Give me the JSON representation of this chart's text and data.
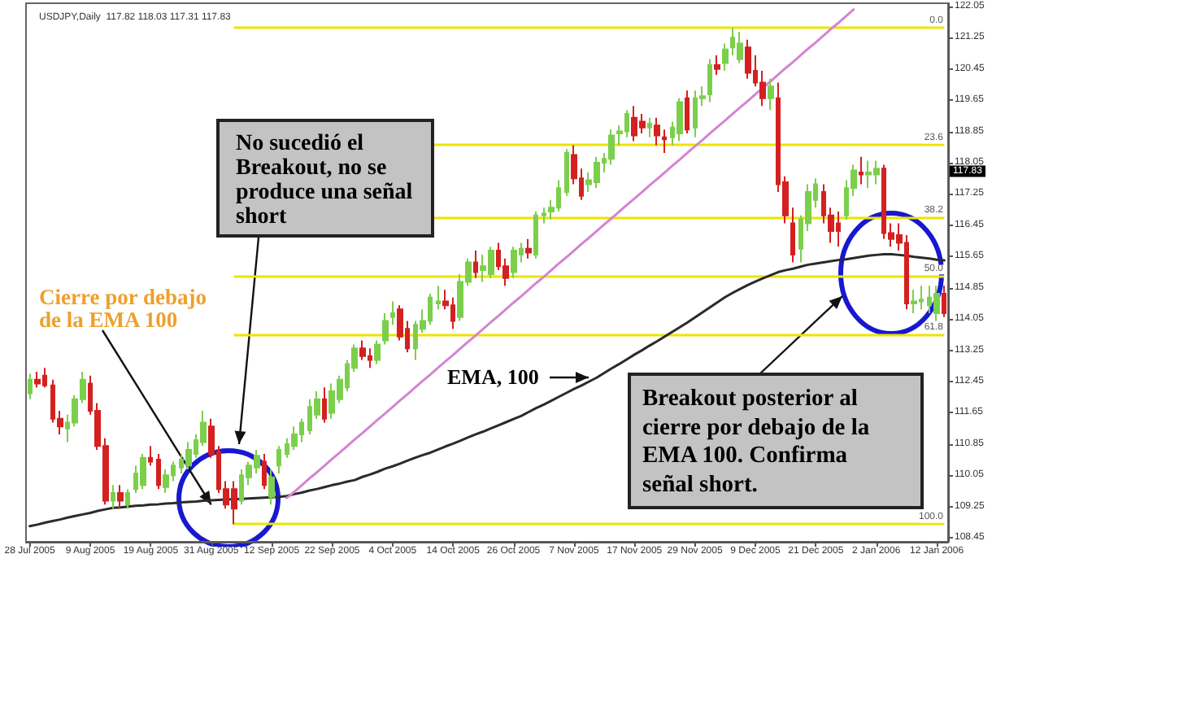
{
  "chart_data": {
    "type": "candlestick",
    "title": "USDJPY,Daily  117.82 118.03 117.31 117.83",
    "categories": [
      "28 Jul 2005",
      null,
      null,
      null,
      null,
      null,
      null,
      null,
      "9 Aug 2005",
      null,
      null,
      null,
      null,
      null,
      null,
      null,
      "19 Aug 2005",
      null,
      null,
      null,
      null,
      null,
      null,
      null,
      "31 Aug 2005",
      null,
      null,
      null,
      null,
      null,
      null,
      null,
      "12 Sep 2005",
      null,
      null,
      null,
      null,
      null,
      null,
      null,
      "22 Sep 2005",
      null,
      null,
      null,
      null,
      null,
      null,
      null,
      "4 Oct 2005",
      null,
      null,
      null,
      null,
      null,
      null,
      null,
      "14 Oct 2005",
      null,
      null,
      null,
      null,
      null,
      null,
      null,
      "26 Oct 2005",
      null,
      null,
      null,
      null,
      null,
      null,
      null,
      "7 Nov 2005",
      null,
      null,
      null,
      null,
      null,
      null,
      null,
      "17 Nov 2005",
      null,
      null,
      null,
      null,
      null,
      null,
      null,
      "29 Nov 2005",
      null,
      null,
      null,
      null,
      null,
      null,
      null,
      "9 Dec 2005",
      null,
      null,
      null,
      null,
      null,
      null,
      null,
      "21 Dec 2005",
      null,
      null,
      null,
      null,
      null,
      null,
      null,
      "2 Jan 2006",
      null,
      null,
      null,
      null,
      null,
      null,
      null,
      "12 Jan 2006",
      null
    ],
    "ohlc": [
      [
        112.15,
        112.65,
        112.0,
        112.5
      ],
      [
        112.5,
        112.7,
        112.3,
        112.4
      ],
      [
        112.6,
        112.8,
        112.3,
        112.35
      ],
      [
        112.35,
        112.5,
        111.4,
        111.5
      ],
      [
        111.5,
        111.7,
        111.1,
        111.3
      ],
      [
        111.25,
        111.6,
        110.9,
        111.4
      ],
      [
        111.4,
        112.1,
        111.3,
        112.0
      ],
      [
        112.0,
        112.7,
        111.9,
        112.5
      ],
      [
        112.4,
        112.6,
        111.6,
        111.7
      ],
      [
        111.7,
        111.9,
        110.7,
        110.8
      ],
      [
        110.8,
        111.0,
        109.3,
        109.4
      ],
      [
        109.4,
        109.8,
        109.2,
        109.6
      ],
      [
        109.6,
        109.8,
        109.2,
        109.4
      ],
      [
        109.3,
        109.7,
        109.2,
        109.6
      ],
      [
        109.7,
        110.3,
        109.6,
        110.1
      ],
      [
        109.8,
        110.6,
        109.7,
        110.5
      ],
      [
        110.5,
        110.8,
        110.3,
        110.4
      ],
      [
        110.45,
        110.6,
        109.7,
        109.8
      ],
      [
        109.75,
        110.2,
        109.6,
        110.05
      ],
      [
        110.05,
        110.4,
        109.9,
        110.3
      ],
      [
        110.25,
        110.6,
        110.1,
        110.45
      ],
      [
        110.3,
        110.9,
        110.2,
        110.7
      ],
      [
        110.6,
        111.1,
        110.5,
        110.95
      ],
      [
        110.9,
        111.7,
        110.8,
        111.4
      ],
      [
        111.3,
        111.5,
        110.5,
        110.6
      ],
      [
        110.65,
        110.8,
        109.6,
        109.7
      ],
      [
        109.7,
        109.9,
        109.2,
        109.3
      ],
      [
        109.7,
        109.9,
        108.8,
        109.2
      ],
      [
        109.4,
        110.2,
        109.3,
        110.05
      ],
      [
        110.0,
        110.4,
        109.8,
        110.3
      ],
      [
        110.25,
        110.7,
        110.1,
        110.55
      ],
      [
        110.4,
        110.6,
        109.7,
        109.8
      ],
      [
        109.5,
        110.2,
        109.3,
        110.0
      ],
      [
        110.3,
        110.8,
        110.1,
        110.7
      ],
      [
        110.6,
        111.0,
        110.5,
        110.85
      ],
      [
        110.8,
        111.3,
        110.7,
        111.1
      ],
      [
        111.1,
        111.5,
        110.9,
        111.4
      ],
      [
        111.2,
        112.0,
        111.1,
        111.8
      ],
      [
        111.6,
        112.2,
        111.5,
        112.0
      ],
      [
        112.0,
        112.3,
        111.4,
        111.5
      ],
      [
        111.65,
        112.4,
        111.5,
        112.2
      ],
      [
        112.0,
        112.6,
        111.9,
        112.5
      ],
      [
        112.3,
        113.0,
        112.2,
        112.9
      ],
      [
        112.8,
        113.4,
        112.7,
        113.3
      ],
      [
        113.3,
        113.5,
        113.0,
        113.1
      ],
      [
        113.1,
        113.3,
        112.8,
        113.0
      ],
      [
        113.0,
        113.5,
        112.9,
        113.4
      ],
      [
        113.5,
        114.2,
        113.4,
        114.0
      ],
      [
        114.1,
        114.5,
        113.9,
        114.2
      ],
      [
        114.3,
        114.4,
        113.5,
        113.6
      ],
      [
        113.8,
        114.0,
        113.2,
        113.3
      ],
      [
        113.3,
        114.0,
        113.0,
        113.9
      ],
      [
        113.8,
        114.3,
        113.7,
        114.0
      ],
      [
        114.0,
        114.7,
        113.9,
        114.6
      ],
      [
        114.45,
        114.9,
        114.3,
        114.5
      ],
      [
        114.5,
        114.8,
        114.3,
        114.4
      ],
      [
        114.4,
        114.6,
        113.8,
        114.0
      ],
      [
        114.1,
        115.2,
        114.0,
        115.0
      ],
      [
        115.0,
        115.6,
        114.9,
        115.5
      ],
      [
        115.5,
        115.8,
        115.1,
        115.25
      ],
      [
        115.3,
        115.7,
        115.0,
        115.4
      ],
      [
        115.2,
        115.9,
        115.1,
        115.8
      ],
      [
        115.8,
        116.0,
        115.3,
        115.4
      ],
      [
        115.4,
        115.6,
        114.9,
        115.1
      ],
      [
        115.25,
        115.9,
        115.1,
        115.8
      ],
      [
        115.7,
        116.0,
        115.5,
        115.85
      ],
      [
        115.85,
        116.1,
        115.6,
        115.75
      ],
      [
        115.7,
        116.8,
        115.6,
        116.7
      ],
      [
        116.7,
        116.9,
        116.5,
        116.75
      ],
      [
        116.8,
        117.1,
        116.6,
        116.9
      ],
      [
        116.9,
        117.6,
        116.8,
        117.4
      ],
      [
        117.3,
        118.4,
        117.2,
        118.3
      ],
      [
        118.25,
        118.5,
        117.5,
        117.65
      ],
      [
        117.65,
        117.9,
        117.1,
        117.2
      ],
      [
        117.5,
        117.8,
        117.3,
        117.6
      ],
      [
        117.55,
        118.2,
        117.4,
        118.05
      ],
      [
        118.05,
        118.3,
        117.8,
        118.15
      ],
      [
        118.15,
        118.9,
        118.0,
        118.75
      ],
      [
        118.8,
        119.0,
        118.5,
        118.85
      ],
      [
        118.85,
        119.4,
        118.7,
        119.3
      ],
      [
        119.2,
        119.5,
        118.6,
        118.75
      ],
      [
        119.1,
        119.3,
        118.8,
        118.95
      ],
      [
        118.95,
        119.2,
        118.7,
        119.05
      ],
      [
        119.0,
        119.2,
        118.5,
        118.75
      ],
      [
        118.7,
        118.9,
        118.3,
        118.65
      ],
      [
        118.7,
        119.1,
        118.5,
        118.95
      ],
      [
        118.8,
        119.7,
        118.6,
        119.6
      ],
      [
        119.7,
        119.9,
        118.8,
        118.9
      ],
      [
        118.95,
        119.9,
        118.7,
        119.7
      ],
      [
        119.7,
        120.0,
        119.5,
        119.75
      ],
      [
        119.8,
        120.7,
        119.6,
        120.55
      ],
      [
        120.55,
        120.8,
        120.3,
        120.45
      ],
      [
        120.6,
        121.1,
        120.4,
        120.95
      ],
      [
        121.0,
        121.5,
        120.8,
        121.25
      ],
      [
        120.7,
        121.4,
        120.6,
        121.1
      ],
      [
        121.0,
        121.2,
        120.2,
        120.35
      ],
      [
        120.4,
        120.8,
        120.0,
        120.1
      ],
      [
        120.1,
        120.4,
        119.5,
        119.7
      ],
      [
        119.7,
        120.2,
        119.4,
        120.0
      ],
      [
        119.7,
        120.1,
        117.3,
        117.5
      ],
      [
        117.55,
        117.7,
        116.5,
        116.7
      ],
      [
        116.5,
        116.9,
        115.5,
        115.7
      ],
      [
        115.85,
        116.7,
        115.5,
        116.6
      ],
      [
        116.5,
        117.5,
        116.3,
        117.3
      ],
      [
        117.1,
        117.65,
        116.9,
        117.5
      ],
      [
        117.3,
        117.5,
        116.5,
        116.7
      ],
      [
        116.7,
        116.9,
        116.0,
        116.3
      ],
      [
        116.5,
        116.8,
        115.9,
        116.3
      ],
      [
        116.7,
        117.6,
        116.6,
        117.4
      ],
      [
        117.4,
        118.0,
        117.2,
        117.85
      ],
      [
        117.8,
        118.2,
        117.5,
        117.75
      ],
      [
        117.75,
        118.1,
        117.4,
        117.8
      ],
      [
        117.75,
        118.1,
        117.5,
        117.9
      ],
      [
        117.9,
        118.0,
        116.1,
        116.25
      ],
      [
        116.25,
        116.5,
        115.9,
        116.1
      ],
      [
        116.2,
        116.5,
        115.8,
        116.0
      ],
      [
        116.0,
        116.2,
        114.3,
        114.45
      ],
      [
        114.45,
        114.8,
        114.2,
        114.5
      ],
      [
        114.5,
        114.9,
        114.3,
        114.55
      ],
      [
        114.4,
        114.9,
        114.2,
        114.6
      ],
      [
        114.2,
        114.9,
        114.0,
        114.7
      ],
      [
        114.7,
        114.9,
        114.1,
        114.2
      ]
    ],
    "colors": [
      "#7ccf4c",
      "#d42020",
      "#d42020",
      "#d42020",
      "#d42020",
      "#7ccf4c",
      "#7ccf4c",
      "#7ccf4c",
      "#d42020",
      "#d42020",
      "#d42020",
      "#7ccf4c",
      "#d42020",
      "#7ccf4c",
      "#7ccf4c",
      "#7ccf4c",
      "#d42020",
      "#d42020",
      "#7ccf4c",
      "#7ccf4c",
      "#7ccf4c",
      "#7ccf4c",
      "#7ccf4c",
      "#7ccf4c",
      "#d42020",
      "#d42020",
      "#d42020",
      "#d42020",
      "#7ccf4c",
      "#7ccf4c",
      "#7ccf4c",
      "#d42020",
      "#7ccf4c",
      "#7ccf4c",
      "#7ccf4c",
      "#7ccf4c",
      "#7ccf4c",
      "#7ccf4c",
      "#7ccf4c",
      "#d42020",
      "#7ccf4c",
      "#7ccf4c",
      "#7ccf4c",
      "#7ccf4c",
      "#d42020",
      "#d42020",
      "#7ccf4c",
      "#7ccf4c",
      "#7ccf4c",
      "#d42020",
      "#d42020",
      "#7ccf4c",
      "#7ccf4c",
      "#7ccf4c",
      "#7ccf4c",
      "#d42020",
      "#d42020",
      "#7ccf4c",
      "#7ccf4c",
      "#d42020",
      "#7ccf4c",
      "#7ccf4c",
      "#d42020",
      "#d42020",
      "#7ccf4c",
      "#7ccf4c",
      "#d42020",
      "#7ccf4c",
      "#7ccf4c",
      "#7ccf4c",
      "#7ccf4c",
      "#7ccf4c",
      "#d42020",
      "#d42020",
      "#7ccf4c",
      "#7ccf4c",
      "#7ccf4c",
      "#7ccf4c",
      "#7ccf4c",
      "#7ccf4c",
      "#d42020",
      "#d42020",
      "#7ccf4c",
      "#d42020",
      "#d42020",
      "#7ccf4c",
      "#7ccf4c",
      "#d42020",
      "#7ccf4c",
      "#7ccf4c",
      "#7ccf4c",
      "#d42020",
      "#7ccf4c",
      "#7ccf4c",
      "#7ccf4c",
      "#d42020",
      "#d42020",
      "#d42020",
      "#7ccf4c",
      "#d42020",
      "#d42020",
      "#d42020",
      "#7ccf4c",
      "#7ccf4c",
      "#7ccf4c",
      "#d42020",
      "#d42020",
      "#d42020",
      "#7ccf4c",
      "#7ccf4c",
      "#d42020",
      "#7ccf4c",
      "#7ccf4c",
      "#d42020",
      "#d42020",
      "#d42020",
      "#d42020",
      "#7ccf4c",
      "#7ccf4c",
      "#7ccf4c",
      "#7ccf4c",
      "#d42020"
    ],
    "series": [
      {
        "type": "line",
        "color": "#2a2a2a",
        "values": [
          108.75,
          108.79,
          108.84,
          108.88,
          108.92,
          108.97,
          109.01,
          109.05,
          109.09,
          109.14,
          109.18,
          109.22,
          109.23,
          109.25,
          109.27,
          109.28,
          109.3,
          109.31,
          109.33,
          109.34,
          109.36,
          109.37,
          109.38,
          109.4,
          109.41,
          109.42,
          109.43,
          109.44,
          109.45,
          109.46,
          109.47,
          109.48,
          109.49,
          109.5,
          109.52,
          109.57,
          109.61,
          109.66,
          109.7,
          109.75,
          109.8,
          109.84,
          109.89,
          109.93,
          110.01,
          110.07,
          110.14,
          110.22,
          110.28,
          110.35,
          110.43,
          110.5,
          110.57,
          110.63,
          110.71,
          110.79,
          110.86,
          110.94,
          111.02,
          111.1,
          111.17,
          111.25,
          111.33,
          111.41,
          111.49,
          111.57,
          111.67,
          111.77,
          111.86,
          111.96,
          112.06,
          112.16,
          112.26,
          112.35,
          112.45,
          112.55,
          112.67,
          112.79,
          112.9,
          113.02,
          113.14,
          113.25,
          113.37,
          113.48,
          113.6,
          113.72,
          113.84,
          113.96,
          114.09,
          114.22,
          114.35,
          114.48,
          114.61,
          114.72,
          114.82,
          114.92,
          115.01,
          115.09,
          115.17,
          115.25,
          115.3,
          115.34,
          115.39,
          115.44,
          115.47,
          115.5,
          115.53,
          115.56,
          115.58,
          115.61,
          115.64,
          115.67,
          115.69,
          115.71,
          115.71,
          115.69,
          115.67,
          115.64,
          115.62,
          115.6,
          115.57,
          115.55
        ]
      },
      {
        "type": "line",
        "color": "#d384d3",
        "values": [
          null,
          null,
          null,
          null,
          null,
          null,
          null,
          null,
          null,
          null,
          null,
          null,
          null,
          null,
          null,
          null,
          null,
          null,
          null,
          null,
          null,
          null,
          null,
          null,
          null,
          null,
          null,
          null,
          null,
          null,
          null,
          null,
          null,
          null,
          109.47,
          109.63,
          109.8,
          109.97,
          110.13,
          110.3,
          110.47,
          110.63,
          110.8,
          110.97,
          111.13,
          111.3,
          111.47,
          111.63,
          111.8,
          111.97,
          112.13,
          112.3,
          112.47,
          112.63,
          112.8,
          112.97,
          113.13,
          113.3,
          113.47,
          113.63,
          113.8,
          113.97,
          114.13,
          114.3,
          114.47,
          114.63,
          114.8,
          114.97,
          115.13,
          115.3,
          115.47,
          115.63,
          115.8,
          115.97,
          116.13,
          116.3,
          116.47,
          116.63,
          116.8,
          116.97,
          117.13,
          117.3,
          117.47,
          117.63,
          117.8,
          117.97,
          118.13,
          118.3,
          118.47,
          118.63,
          118.8,
          118.97,
          119.13,
          119.3,
          119.47,
          119.63,
          119.8,
          119.97,
          120.13,
          120.3,
          120.47,
          120.63,
          120.8,
          120.97,
          121.13,
          121.3,
          121.47,
          121.63,
          121.8,
          121.97,
          null,
          null,
          null,
          null,
          null,
          null,
          null,
          null,
          null,
          null,
          null,
          null
        ]
      }
    ],
    "ylim": [
      108.35,
      122.13
    ],
    "yticks": [
      108.45,
      109.25,
      110.05,
      110.85,
      111.65,
      112.45,
      113.25,
      114.05,
      114.85,
      115.65,
      116.45,
      117.25,
      118.05,
      118.85,
      119.65,
      120.45,
      121.25,
      122.05
    ],
    "ref_lines": [
      {
        "axis": "y",
        "value": 121.5,
        "color": "#ece400"
      },
      {
        "axis": "y",
        "value": 118.5,
        "color": "#ece400"
      },
      {
        "axis": "y",
        "value": 116.65,
        "color": "#ece400"
      },
      {
        "axis": "y",
        "value": 115.15,
        "color": "#ece400"
      },
      {
        "axis": "y",
        "value": 113.65,
        "color": "#ece400"
      },
      {
        "axis": "y",
        "value": 108.8,
        "color": "#ece400"
      }
    ],
    "annotations": [
      {
        "text": "117.83",
        "y": 117.83
      },
      "No sucedió el Breakout, no se produce una señal short",
      {
        "text": "Cierre por debajo de la EMA 100",
        "x": "31 Aug 2005",
        "y": 109.3
      },
      "EMA, 100",
      "Breakout posterior al cierre por debajo de la EMA 100. Confirma señal short.",
      {
        "text": "0.0",
        "y": 121.5
      },
      {
        "text": "23.6",
        "y": 118.5
      },
      {
        "text": "38.2",
        "y": 116.65
      },
      {
        "text": "50.0",
        "y": 115.15
      },
      {
        "text": "61.8",
        "y": 113.65
      },
      {
        "text": "100.0",
        "y": 108.8
      }
    ],
    "grid": false,
    "marker": "none"
  }
}
